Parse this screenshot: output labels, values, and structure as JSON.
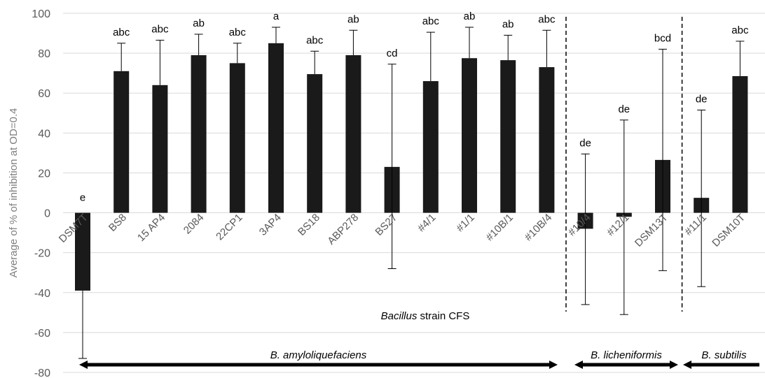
{
  "chart_data": {
    "type": "bar",
    "ylabel": "Average of % of inhibition at OD=0.4",
    "xlabel_italic": "Bacillus",
    "xlabel_rest": " strain CFS",
    "ylim": [
      -80,
      100
    ],
    "yticks": [
      -80,
      -60,
      -40,
      -20,
      0,
      20,
      40,
      60,
      80,
      100
    ],
    "grid": true,
    "categories": [
      "DSM7T",
      "BS8",
      "15 AP4",
      "2084",
      "22CP1",
      "3AP4",
      "BS18",
      "ABP278",
      "BS27",
      "#4/1",
      "#1/1",
      "#10B/1",
      "#10B/4",
      "#10/4",
      "#12/1",
      "DSM13T",
      "#11/1",
      "DSM10T"
    ],
    "values": [
      -39,
      71,
      64,
      79,
      75,
      85,
      69.5,
      79,
      23,
      66,
      77.5,
      76.5,
      73,
      -8,
      -2,
      26.5,
      7.5,
      68.5
    ],
    "error_upper": [
      -73,
      85,
      86.5,
      89.5,
      85,
      93,
      81,
      91.5,
      74.5,
      90.5,
      93,
      89,
      91.5,
      29.5,
      46.5,
      82,
      51.5,
      86
    ],
    "error_lower": [
      -39,
      71,
      64,
      79,
      75,
      85,
      69.5,
      79,
      -28,
      66,
      77.5,
      76.5,
      73,
      -46,
      -51,
      -29,
      -37,
      68.5
    ],
    "significance_labels": [
      "e",
      "abc",
      "abc",
      "ab",
      "abc",
      "a",
      "abc",
      "ab",
      "cd",
      "abc",
      "ab",
      "ab",
      "abc",
      "de",
      "de",
      "bcd",
      "de",
      "abc"
    ],
    "groups": [
      {
        "name": "B. amyloliquefaciens",
        "from": 0,
        "to": 12
      },
      {
        "name": "B. licheniformis",
        "from": 13,
        "to": 15
      },
      {
        "name": "B. subtilis",
        "from": 16,
        "to": 17
      }
    ],
    "colors": {
      "bar": "#1a1a1a",
      "grid": "#d9d9d9",
      "axis_text": "#595959"
    }
  }
}
